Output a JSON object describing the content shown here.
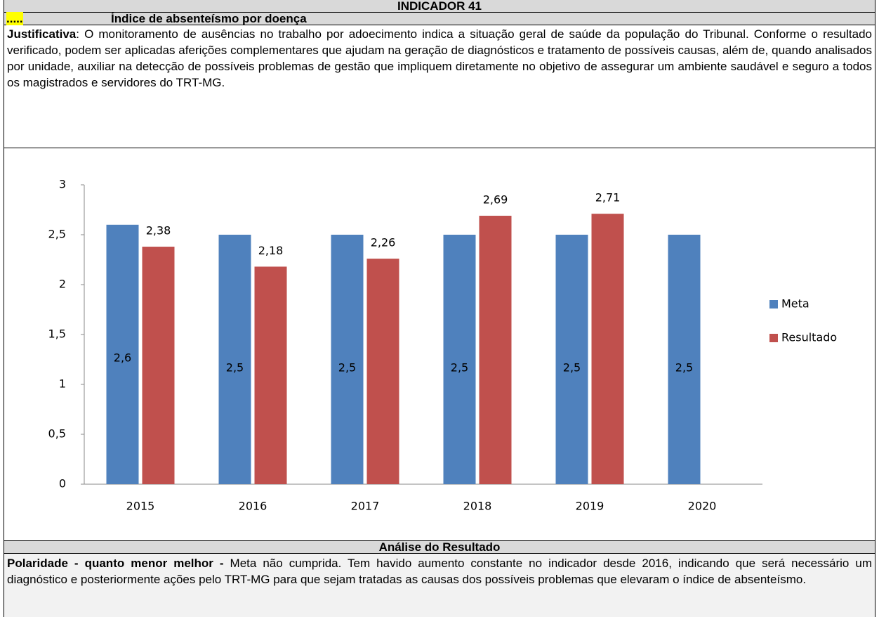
{
  "header": {
    "title": "INDICADOR 41",
    "marker": ".....",
    "subtitle": "Índice de absenteísmo por doença"
  },
  "justification": {
    "label": "Justificativa",
    "text": ": O monitoramento de ausências no trabalho por adoecimento indica a situação geral de saúde da população do Tribunal. Conforme o resultado verificado, podem ser aplicadas aferições complementares que ajudam na geração de diagnósticos e tratamento de possíveis causas, além de, quando analisados por unidade, auxiliar na detecção de possíveis problemas de gestão que impliquem diretamente no objetivo de assegurar um ambiente saudável e seguro a todos os magistrados e servidores do TRT-MG."
  },
  "chart_data": {
    "type": "bar",
    "categories": [
      "2015",
      "2016",
      "2017",
      "2018",
      "2019",
      "2020"
    ],
    "series": [
      {
        "name": "Meta",
        "color": "#4f81bd",
        "values": [
          2.6,
          2.5,
          2.5,
          2.5,
          2.5,
          2.5
        ],
        "value_labels": [
          "2,6",
          "2,5",
          "2,5",
          "2,5",
          "2,5",
          "2,5"
        ]
      },
      {
        "name": "Resultado",
        "color": "#c0504d",
        "values": [
          2.38,
          2.18,
          2.26,
          2.69,
          2.71,
          null
        ],
        "value_labels": [
          "2,38",
          "2,18",
          "2,26",
          "2,69",
          "2,71",
          null
        ]
      }
    ],
    "ylim": [
      0,
      3
    ],
    "yticks": [
      0,
      {
        "value": 0.5,
        "label": "0,5"
      },
      1,
      {
        "value": 1.5,
        "label": "1,5"
      },
      2,
      {
        "value": 2.5,
        "label": "2,5"
      },
      3
    ],
    "grid": false,
    "legend": "right"
  },
  "analysis": {
    "title": "Análise do Resultado",
    "label": "Polaridade - quanto menor melhor -",
    "text": " Meta não cumprida. Tem havido aumento constante no indicador desde 2016, indicando que será necessário um diagnóstico e posteriormente ações pelo TRT-MG para que sejam tratadas as causas dos possíveis problemas que elevaram o índice de absenteísmo."
  }
}
